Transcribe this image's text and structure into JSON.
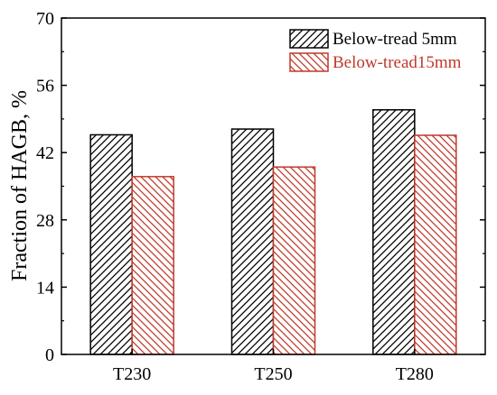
{
  "chart_data": {
    "type": "bar",
    "title": "",
    "xlabel": "",
    "ylabel": "Fraction of HAGB, %",
    "categories": [
      "T230",
      "T250",
      "T280"
    ],
    "series": [
      {
        "name": "Below-tread 5mm",
        "values": [
          45.7,
          46.9,
          50.9
        ],
        "color": "#000000",
        "hatch": "diagonal-up"
      },
      {
        "name": "Below-tread15mm",
        "values": [
          37.0,
          39.0,
          45.6
        ],
        "color": "#c0392b",
        "hatch": "diagonal-down"
      }
    ],
    "ylim": [
      0,
      70
    ],
    "yticks": [
      0,
      14,
      28,
      42,
      56,
      70
    ],
    "grid": false,
    "legend_position": "top-right"
  }
}
